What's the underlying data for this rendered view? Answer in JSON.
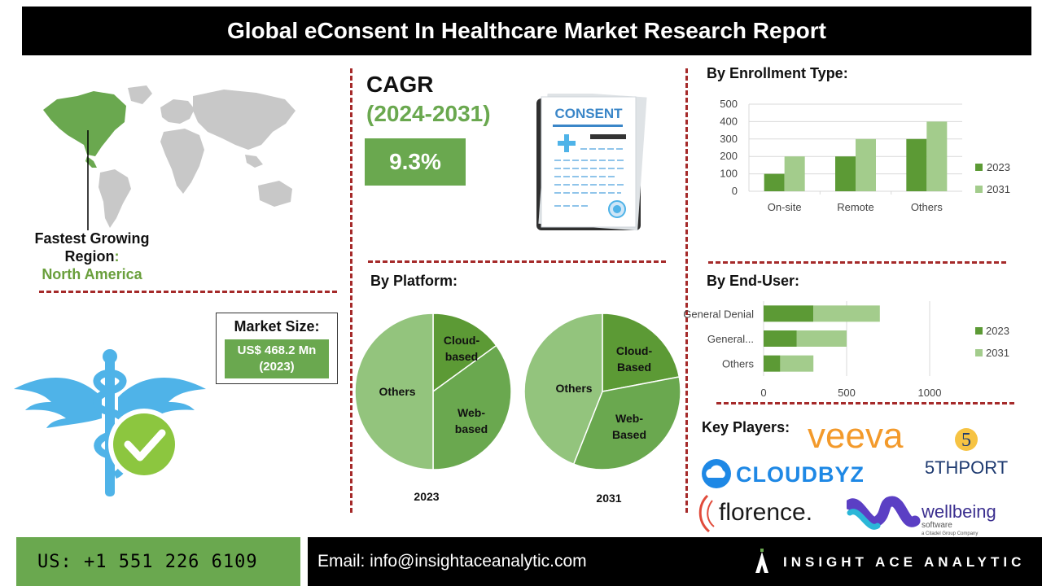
{
  "title": "Global eConsent In Healthcare Market Research Report",
  "region": {
    "line1": "Fastest Growing",
    "line2": "Region",
    "colon": ":",
    "value": "North America"
  },
  "cagr": {
    "label": "CAGR",
    "years": "(2024-2031)",
    "value": "9.3%"
  },
  "consent_doc": {
    "label": "CONSENT"
  },
  "market_size": {
    "label": "Market Size:",
    "value_line1": "US$ 468.2 Mn",
    "value_line2": "(2023)"
  },
  "platform": {
    "heading": "By Platform:"
  },
  "enrollment": {
    "heading": "By Enrollment Type:"
  },
  "end_user": {
    "heading": "By End-User:"
  },
  "key_players": {
    "heading": "Key Players:",
    "logos": [
      "veeva",
      "5THPORT",
      "CLOUDBYZ",
      "florence.",
      "wellbeing"
    ],
    "wellbeing_sub1": "software",
    "wellbeing_sub2": "a Citadel Group Company"
  },
  "colors": {
    "dark_green": "#5c9a35",
    "light_green": "#a3cc8c",
    "mid_green": "#6aa84f",
    "pie_light": "#93c47d",
    "divider": "#a52a2a"
  },
  "chart_data": [
    {
      "type": "bar",
      "title": "By Enrollment Type:",
      "categories": [
        "On-site",
        "Remote",
        "Others"
      ],
      "series": [
        {
          "name": "2023",
          "values": [
            100,
            200,
            300
          ]
        },
        {
          "name": "2031",
          "values": [
            200,
            300,
            400
          ]
        }
      ],
      "ylim": [
        0,
        500
      ],
      "yticks": [
        "0",
        "100",
        "200",
        "300",
        "400",
        "500"
      ],
      "grid": true,
      "legend": "right"
    },
    {
      "type": "bar",
      "orientation": "horizontal",
      "stacked": true,
      "title": "By End-User:",
      "categories": [
        "General Denial",
        "General...",
        "Others"
      ],
      "series": [
        {
          "name": "2023",
          "values": [
            300,
            200,
            100
          ]
        },
        {
          "name": "2031",
          "values": [
            400,
            300,
            200
          ]
        }
      ],
      "xlim": [
        0,
        1200
      ],
      "xticks": [
        "0",
        "500",
        "1000"
      ],
      "grid": true,
      "legend": "right"
    },
    {
      "type": "pie",
      "title": "2023",
      "labels": [
        "Cloud-based",
        "Web-based",
        "Others"
      ],
      "values": [
        15,
        35,
        50
      ]
    },
    {
      "type": "pie",
      "title": "2031",
      "labels": [
        "Cloud-Based",
        "Web-Based",
        "Others"
      ],
      "values": [
        22,
        34,
        44
      ]
    }
  ],
  "footer": {
    "phone": "US: +1 551 226 6109",
    "email": "Email: info@insightaceanalytic.com",
    "brand": "INSIGHT ACE ANALYTIC"
  }
}
